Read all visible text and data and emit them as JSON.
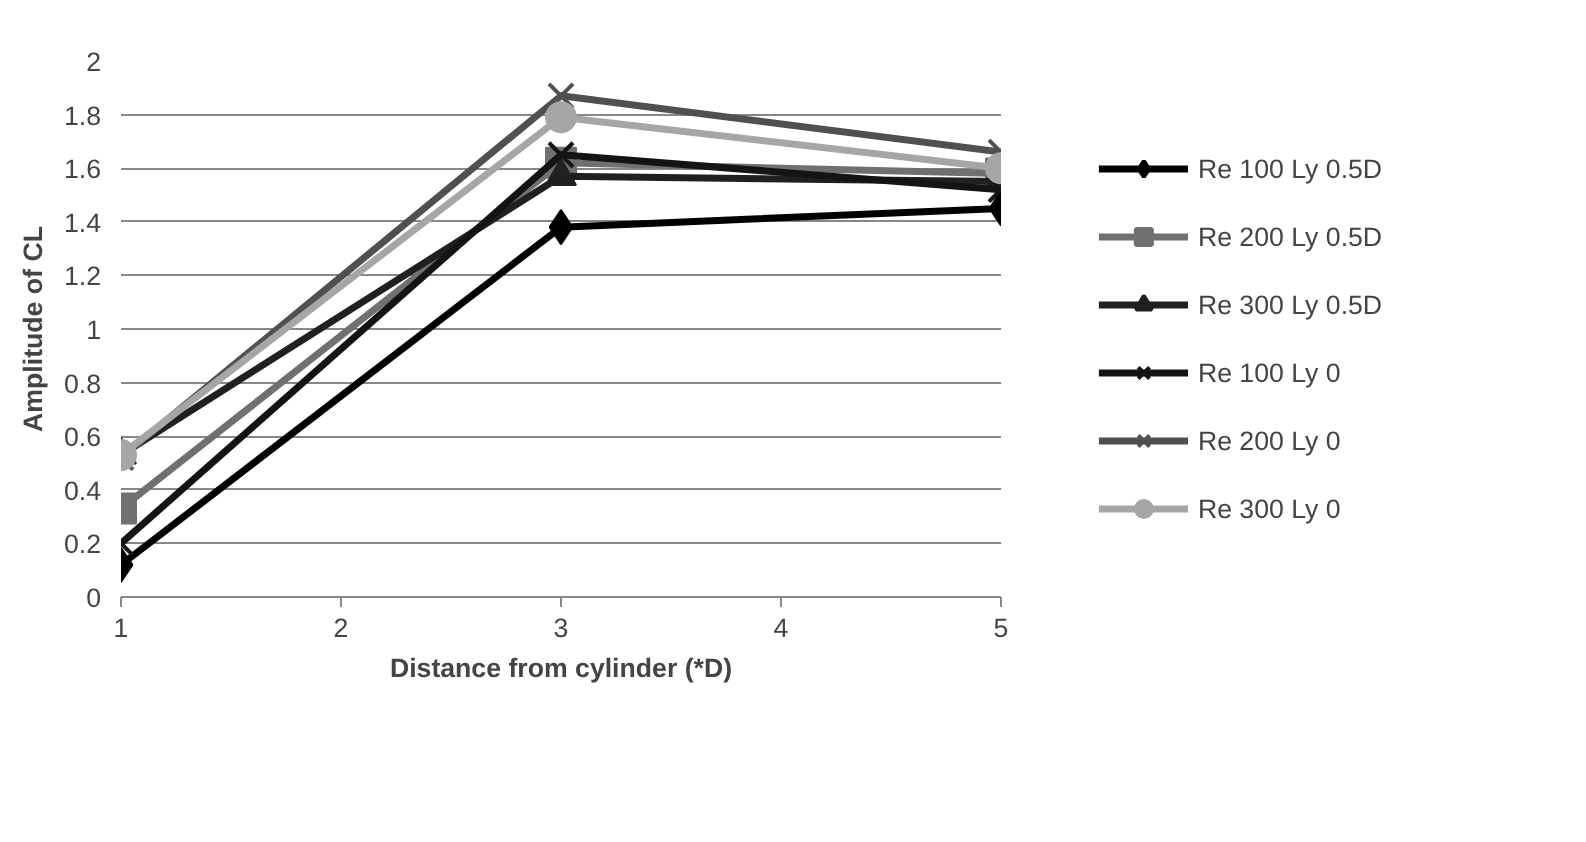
{
  "chart_data": {
    "type": "line",
    "xlabel": "Distance from cylinder (*D)",
    "ylabel": "Amplitude of CL",
    "x": [
      1,
      3,
      5
    ],
    "xlim": [
      1,
      5
    ],
    "xticks": [
      1,
      2,
      3,
      4,
      5
    ],
    "ylim": [
      0,
      2
    ],
    "yticks": [
      0,
      0.2,
      0.4,
      0.6,
      0.8,
      1,
      1.2,
      1.4,
      1.6,
      1.8,
      2
    ],
    "grid": "y",
    "legend": "right",
    "line_style": "solid",
    "series": [
      {
        "name": "Re 100 Ly 0.5D",
        "color": "#000000",
        "marker": "diamond",
        "values": [
          0.12,
          1.38,
          1.45
        ]
      },
      {
        "name": "Re 200 Ly 0.5D",
        "color": "#707070",
        "marker": "square",
        "values": [
          0.33,
          1.62,
          1.58
        ]
      },
      {
        "name": "Re 300 Ly 0.5D",
        "color": "#202020",
        "marker": "triangle",
        "values": [
          0.53,
          1.57,
          1.55
        ]
      },
      {
        "name": "Re 100 Ly 0",
        "color": "#141414",
        "marker": "cross",
        "values": [
          0.2,
          1.65,
          1.52
        ]
      },
      {
        "name": "Re 200 Ly 0",
        "color": "#505050",
        "marker": "cross",
        "values": [
          0.52,
          1.87,
          1.66
        ]
      },
      {
        "name": "Re 300 Ly 0",
        "color": "#a6a6a6",
        "marker": "circle",
        "values": [
          0.53,
          1.79,
          1.6
        ]
      }
    ]
  }
}
